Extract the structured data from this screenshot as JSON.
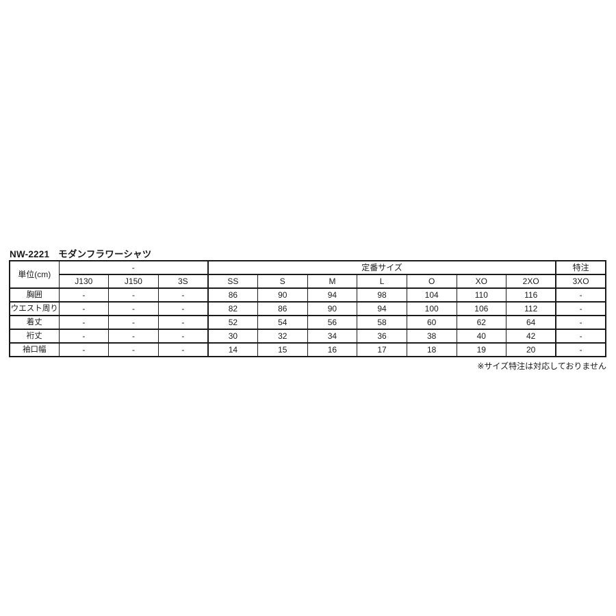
{
  "title": {
    "code": "NW-2221",
    "name": "モダンフラワーシャツ"
  },
  "footnote": "※サイズ特注は対応しておりません",
  "chart_data": {
    "type": "table",
    "unit_label": "単位(cm)",
    "column_groups": [
      {
        "label": "-",
        "colspan": 3
      },
      {
        "label": "定番サイズ",
        "colspan": 7
      },
      {
        "label": "特注",
        "colspan": 1
      }
    ],
    "size_columns": [
      "J130",
      "J150",
      "3S",
      "SS",
      "S",
      "M",
      "L",
      "O",
      "XO",
      "2XO",
      "3XO"
    ],
    "rows": [
      {
        "label": "胸囲",
        "values": [
          "-",
          "-",
          "-",
          "86",
          "90",
          "94",
          "98",
          "104",
          "110",
          "116",
          "-"
        ]
      },
      {
        "label": "ウエスト周り",
        "values": [
          "-",
          "-",
          "-",
          "82",
          "86",
          "90",
          "94",
          "100",
          "106",
          "112",
          "-"
        ]
      },
      {
        "label": "着丈",
        "values": [
          "-",
          "-",
          "-",
          "52",
          "54",
          "56",
          "58",
          "60",
          "62",
          "64",
          "-"
        ]
      },
      {
        "label": "裄丈",
        "values": [
          "-",
          "-",
          "-",
          "30",
          "32",
          "34",
          "36",
          "38",
          "40",
          "42",
          "-"
        ]
      },
      {
        "label": "袖口幅",
        "values": [
          "-",
          "-",
          "-",
          "14",
          "15",
          "16",
          "17",
          "18",
          "19",
          "20",
          "-"
        ]
      }
    ]
  }
}
